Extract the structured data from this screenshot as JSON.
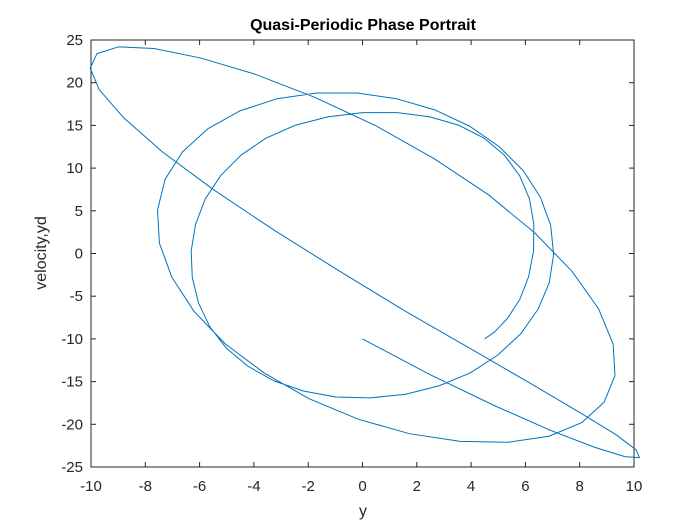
{
  "chart_data": {
    "type": "line",
    "title": "Quasi-Periodic Phase Portrait",
    "xlabel": "y",
    "ylabel": "velocity,yd",
    "xlim": [
      -10,
      10
    ],
    "ylim": [
      -25,
      25
    ],
    "xticks": [
      -10,
      -8,
      -6,
      -4,
      -2,
      0,
      2,
      4,
      6,
      8,
      10
    ],
    "yticks": [
      -25,
      -20,
      -15,
      -10,
      -5,
      0,
      5,
      10,
      15,
      20,
      25
    ],
    "grid": false,
    "box": true,
    "line_color": "#0072BD",
    "axes_color": "#262626",
    "series": [
      {
        "x": [
          4.5,
          4.86,
          5.34,
          5.79,
          6.12,
          6.3,
          6.31,
          6.15,
          5.79,
          5.23,
          4.48,
          3.56,
          2.49,
          1.28,
          0.0,
          -1.28,
          -2.49,
          -3.56,
          -4.48,
          -5.23,
          -5.79,
          -6.15,
          -6.31,
          -6.27,
          -6.04,
          -5.62,
          -5.01,
          -4.22,
          -3.27,
          -2.18,
          -0.98,
          0.29,
          1.57,
          2.81,
          3.96,
          4.98,
          5.83,
          6.47,
          6.88,
          7.04,
          6.93,
          6.55,
          5.92,
          5.04,
          3.95,
          2.68,
          1.28,
          -0.2,
          -1.7,
          -3.17,
          -4.52,
          -5.7,
          -6.63,
          -7.27,
          -7.55,
          -7.48,
          -7.02,
          -6.2,
          -5.05,
          -3.62,
          -1.97,
          -0.16,
          1.73,
          3.6,
          5.35,
          6.87,
          8.08,
          8.9,
          9.3,
          9.23,
          8.7,
          7.72,
          6.35,
          4.63,
          2.64,
          0.47,
          -1.77,
          -3.96,
          -5.97,
          -7.68,
          -8.98,
          -9.78,
          -10.03,
          -9.7,
          -8.8,
          -7.37,
          -5.5,
          -3.29,
          -0.88,
          1.6,
          4.01,
          6.18,
          7.99,
          9.33,
          10.08,
          10.2,
          9.68,
          8.56,
          6.92,
          4.85,
          2.5,
          0.0
        ],
        "y": [
          -10.0,
          -9.2,
          -7.6,
          -5.4,
          -2.7,
          0.3,
          3.4,
          6.4,
          9.1,
          11.5,
          13.5,
          15.0,
          16.0,
          16.5,
          16.5,
          16.0,
          15.0,
          13.5,
          11.5,
          9.1,
          6.4,
          3.4,
          0.3,
          -2.8,
          -5.8,
          -8.6,
          -11.1,
          -13.2,
          -14.9,
          -16.1,
          -16.8,
          -16.9,
          -16.5,
          -15.5,
          -14.0,
          -11.9,
          -9.4,
          -6.5,
          -3.4,
          -0.1,
          3.3,
          6.6,
          9.7,
          12.5,
          14.9,
          16.8,
          18.1,
          18.8,
          18.8,
          18.1,
          16.7,
          14.6,
          11.9,
          8.7,
          5.1,
          1.2,
          -2.8,
          -6.8,
          -10.6,
          -14.0,
          -17.0,
          -19.4,
          -21.1,
          -22.0,
          -22.1,
          -21.4,
          -19.8,
          -17.4,
          -14.3,
          -10.6,
          -6.5,
          -2.1,
          2.4,
          6.9,
          11.1,
          15.0,
          18.3,
          21.0,
          22.9,
          24.0,
          24.2,
          23.4,
          21.7,
          19.2,
          15.9,
          11.9,
          7.5,
          2.8,
          -2.0,
          -6.8,
          -11.2,
          -15.2,
          -18.6,
          -21.2,
          -23.0,
          -23.9,
          -23.8,
          -22.7,
          -20.7,
          -17.8,
          -14.2,
          -10.0
        ]
      }
    ]
  }
}
